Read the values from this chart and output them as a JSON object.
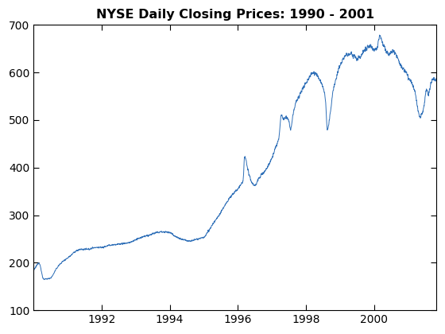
{
  "title": "NYSE Daily Closing Prices: 1990 - 2001",
  "line_color": "#3070b8",
  "line_width": 0.7,
  "xlim_start": 1990.0,
  "xlim_end": 2001.83,
  "ylim": [
    100,
    700
  ],
  "yticks": [
    100,
    200,
    300,
    400,
    500,
    600,
    700
  ],
  "xticks": [
    1992,
    1994,
    1996,
    1998,
    2000
  ],
  "background_color": "#ffffff",
  "title_fontsize": 11.5
}
